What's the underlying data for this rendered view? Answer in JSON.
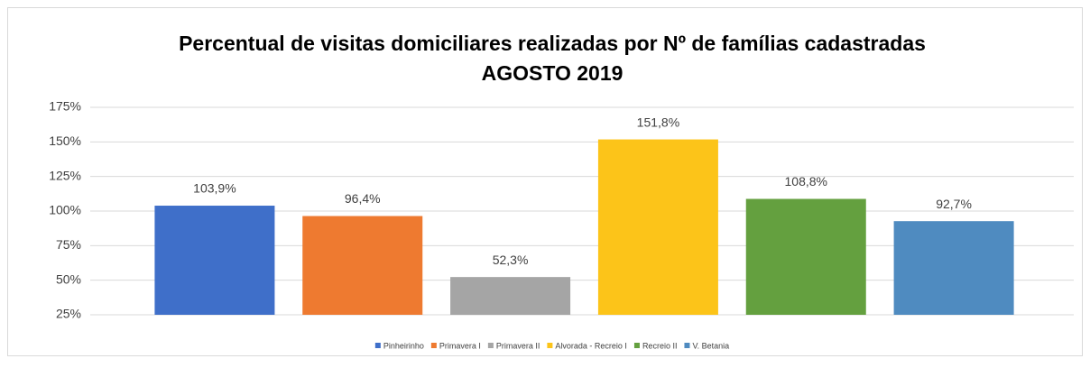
{
  "chart_data": {
    "type": "bar",
    "title": [
      "Percentual de visitas domiciliares realizadas por Nº de famílias cadastradas",
      "AGOSTO 2019"
    ],
    "series": [
      {
        "name": "Pinheirinho",
        "color": "#3f6fc9",
        "values": [
          103.9
        ],
        "value_labels": [
          "103,9%"
        ]
      },
      {
        "name": "Primavera I",
        "color": "#ee7a30",
        "values": [
          96.4
        ],
        "value_labels": [
          "96,4%"
        ]
      },
      {
        "name": "Primavera II",
        "color": "#a5a5a5",
        "values": [
          52.3
        ],
        "value_labels": [
          "52,3%"
        ]
      },
      {
        "name": "Alvorada - Recreio I",
        "color": "#fcc419",
        "values": [
          151.8
        ],
        "value_labels": [
          "151,8%"
        ]
      },
      {
        "name": "Recreio II",
        "color": "#64a03f",
        "values": [
          108.8
        ],
        "value_labels": [
          "108,8%"
        ]
      },
      {
        "name": "V. Betania",
        "color": "#4f8bc0",
        "values": [
          92.7
        ],
        "value_labels": [
          "92,7%"
        ]
      }
    ],
    "ylim": [
      25,
      175
    ],
    "yticks": [
      {
        "value": 25,
        "label": "25%"
      },
      {
        "value": 50,
        "label": "50%"
      },
      {
        "value": 75,
        "label": "75%"
      },
      {
        "value": 100,
        "label": "100%"
      },
      {
        "value": 125,
        "label": "125%"
      },
      {
        "value": 150,
        "label": "150%"
      },
      {
        "value": 175,
        "label": "175%"
      }
    ],
    "grid": true,
    "legend": "bottom"
  }
}
